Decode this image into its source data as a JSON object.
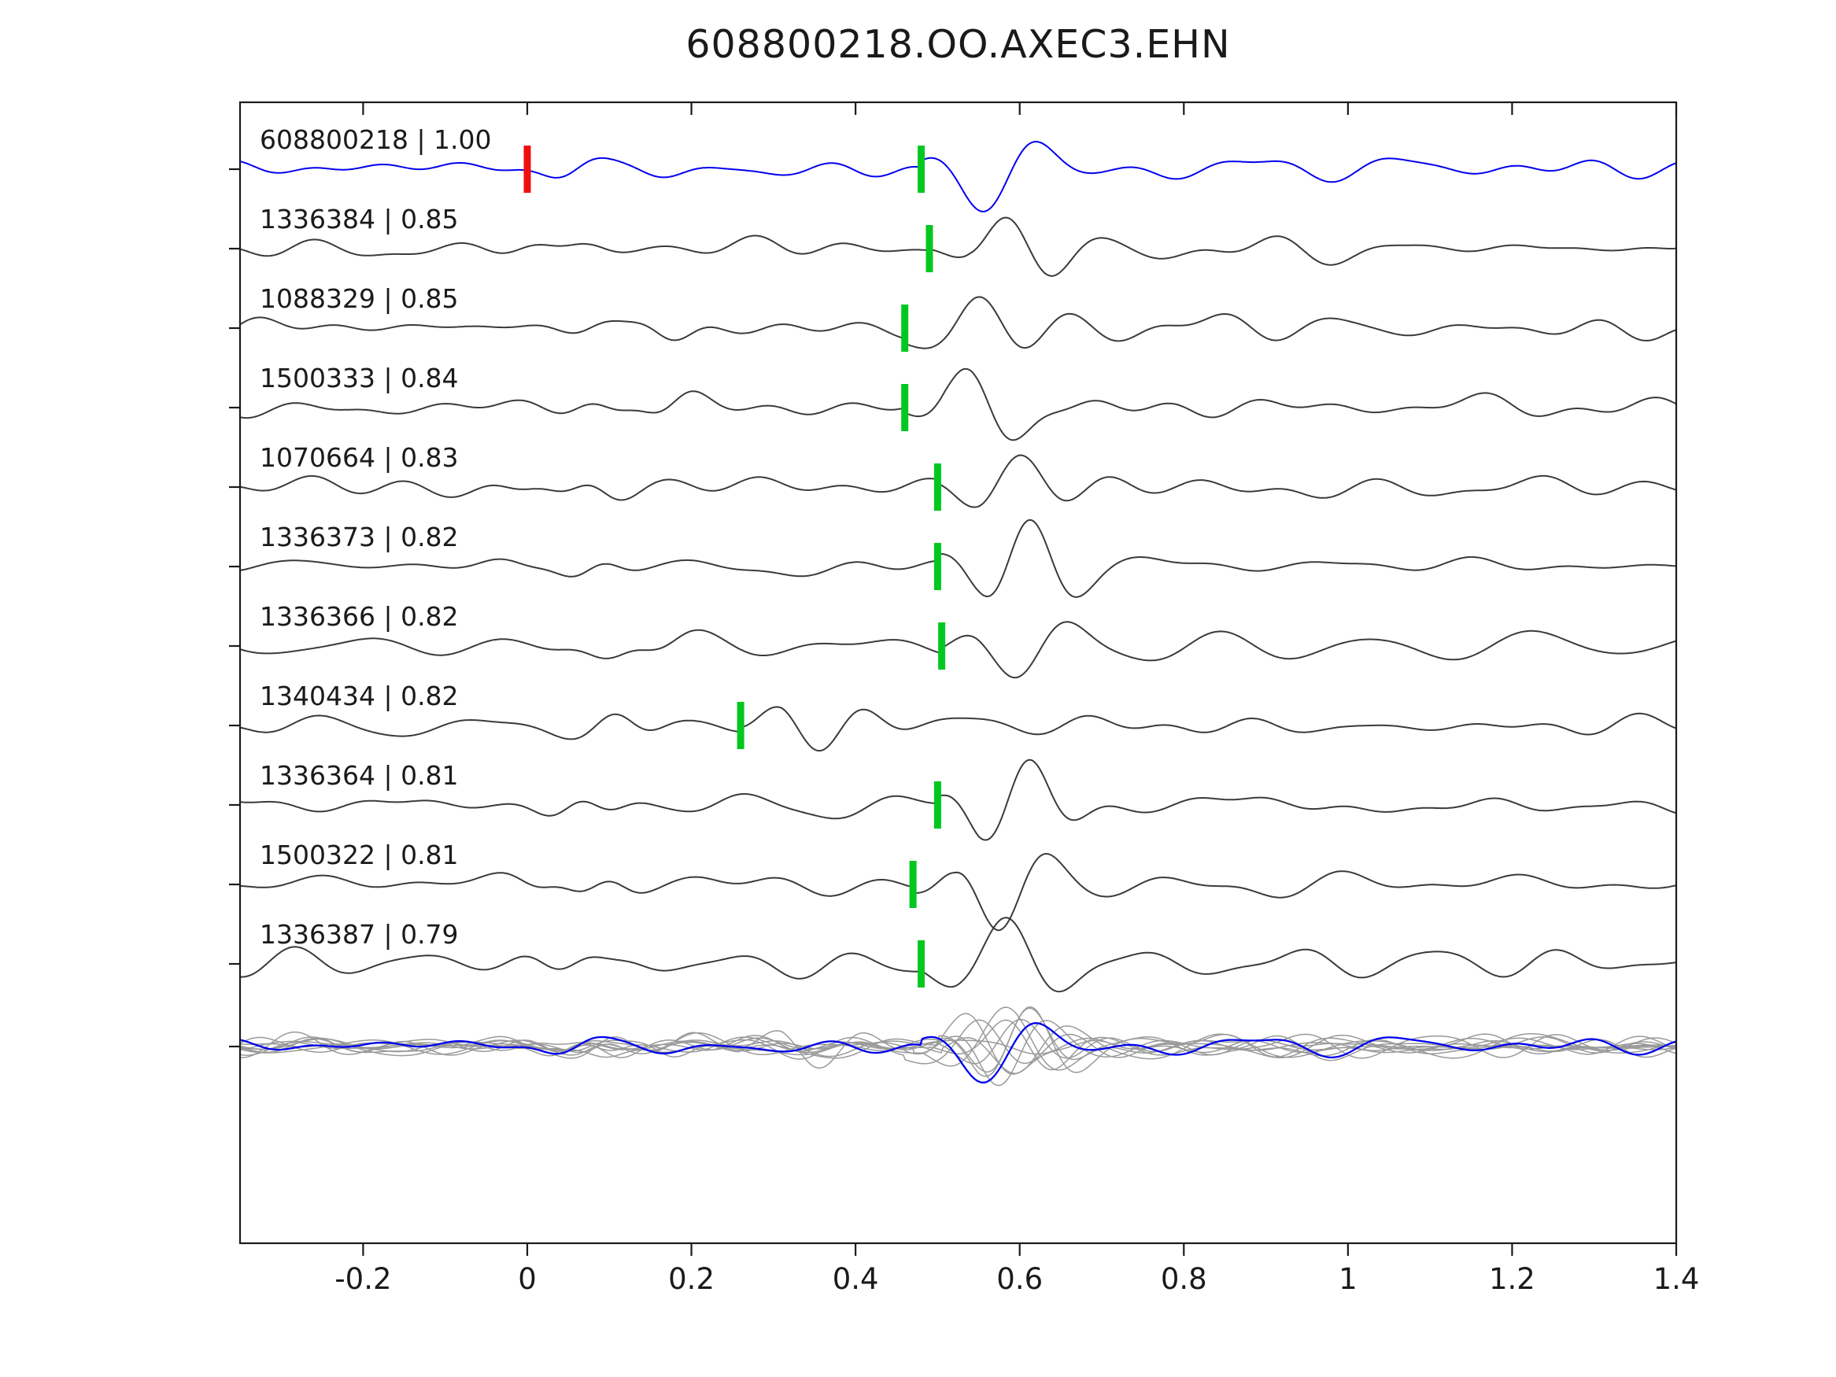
{
  "title": "608800218.OO.AXEC3.EHN",
  "chart_data": {
    "type": "line",
    "title": "608800218.OO.AXEC3.EHN",
    "xlabel": "",
    "ylabel": "",
    "xlim": [
      -0.35,
      1.4
    ],
    "xticks": [
      -0.2,
      0,
      0.2,
      0.4,
      0.6,
      0.8,
      1.0,
      1.2,
      1.4
    ],
    "xtick_labels": [
      "-0.2",
      "0",
      "0.2",
      "0.4",
      "0.6",
      "0.8",
      "1",
      "1.2",
      "1.4"
    ],
    "grid": false,
    "legend": null,
    "description": "Template waveform matching plot: reference trace (blue) plus matched event traces sorted by correlation coefficient, green bars mark pick times, red bar marks zero time on reference; bottom row shows all traces overlaid (gray) with reference overlay (blue).",
    "colors": {
      "reference_trace": "#0000ee",
      "match_trace": "#3a3a3a",
      "pick_marker": "#00c820",
      "zero_marker": "#ee1010",
      "stack_traces": "#9a9a9a",
      "stack_overlay": "#0000ee",
      "axis": "#1a1a1a",
      "text": "#1a1a1a"
    },
    "traces": [
      {
        "id": "608800218",
        "corr": "1.00",
        "label": "608800218 | 1.00",
        "pick_time": 0.48,
        "zero_marker_time": 0.0,
        "is_reference": true
      },
      {
        "id": "1336384",
        "corr": "0.85",
        "label": "1336384 | 0.85",
        "pick_time": 0.49,
        "is_reference": false
      },
      {
        "id": "1088329",
        "corr": "0.85",
        "label": "1088329 | 0.85",
        "pick_time": 0.46,
        "is_reference": false
      },
      {
        "id": "1500333",
        "corr": "0.84",
        "label": "1500333 | 0.84",
        "pick_time": 0.46,
        "is_reference": false
      },
      {
        "id": "1070664",
        "corr": "0.83",
        "label": "1070664 | 0.83",
        "pick_time": 0.5,
        "is_reference": false
      },
      {
        "id": "1336373",
        "corr": "0.82",
        "label": "1336373 | 0.82",
        "pick_time": 0.5,
        "is_reference": false
      },
      {
        "id": "1336366",
        "corr": "0.82",
        "label": "1336366 | 0.82",
        "pick_time": 0.505,
        "is_reference": false
      },
      {
        "id": "1340434",
        "corr": "0.82",
        "label": "1340434 | 0.82",
        "pick_time": 0.26,
        "is_reference": false
      },
      {
        "id": "1336364",
        "corr": "0.81",
        "label": "1336364 | 0.81",
        "pick_time": 0.5,
        "is_reference": false
      },
      {
        "id": "1500322",
        "corr": "0.81",
        "label": "1500322 | 0.81",
        "pick_time": 0.47,
        "is_reference": false
      },
      {
        "id": "1336387",
        "corr": "0.79",
        "label": "1336387 | 0.79",
        "pick_time": 0.48,
        "is_reference": false
      }
    ],
    "stack_row": {
      "content": "all traces overlaid",
      "has_labels": false
    }
  }
}
